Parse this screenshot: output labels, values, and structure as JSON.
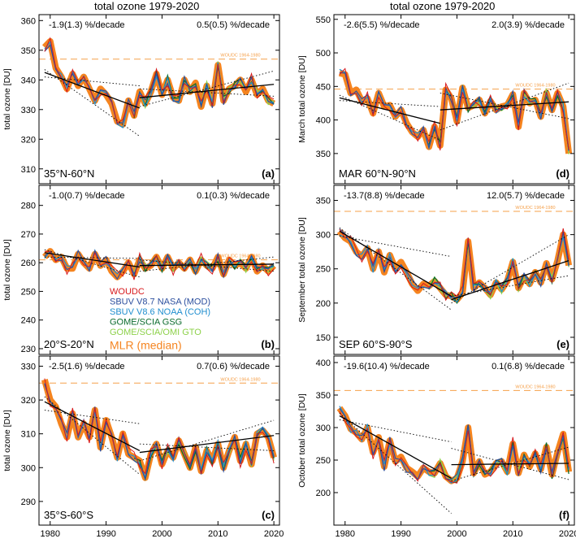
{
  "col_titles": [
    "total ozone 1979-2020",
    "total ozone 1979-2020"
  ],
  "woudc_ref_label": "WOUDC 1964-1980",
  "x_ticks": [
    1980,
    1990,
    2000,
    2010,
    2020
  ],
  "legend": [
    {
      "name": "WOUDC",
      "color": "#d7191c"
    },
    {
      "name": "SBUV V8.7 NASA (MOD)",
      "color": "#2c4f9e"
    },
    {
      "name": "SBUV V8.6 NOAA (COH)",
      "color": "#1f8ecf"
    },
    {
      "name": "GOME/SCIA GSG",
      "color": "#0b6b2e"
    },
    {
      "name": "GOME/SCIA/OMI GTO",
      "color": "#8dd14a"
    },
    {
      "name": "MLR (median)",
      "color": "#f5841f"
    }
  ],
  "colors": {
    "mlr": "#f5841f",
    "woudc": "#d7191c",
    "sbuv_mod": "#2c4f9e",
    "sbuv_coh": "#1f8ecf",
    "gsg": "#0b6b2e",
    "gto": "#8dd14a",
    "trend": "#000000",
    "ref": "#f5a04a"
  },
  "chart_data": [
    {
      "type": "line",
      "panel_letter": "(a)",
      "region": "35°N-60°N",
      "ylabel": "total ozone [DU]",
      "ylim": [
        305,
        362
      ],
      "yticks": [
        310,
        320,
        330,
        340,
        350,
        360
      ],
      "xlim": [
        1978,
        2021
      ],
      "trend_left": "-1.9(1.3) %/decade",
      "trend_right": "0.5(0.5) %/decade",
      "woudc_ref": 347,
      "fit1": {
        "x": [
          1979,
          1996
        ],
        "y": [
          342.5,
          330.5
        ]
      },
      "fit2": {
        "x": [
          1996,
          2020
        ],
        "y": [
          334,
          338.5
        ]
      },
      "ci1": [
        [
          1979,
          343.5,
          1996,
          321
        ],
        [
          1979,
          341,
          1996,
          338
        ]
      ],
      "ci2": [
        [
          1996,
          331,
          2020,
          343
        ],
        [
          1996,
          337,
          2020,
          334.5
        ]
      ],
      "x": [
        1979,
        1980,
        1981,
        1982,
        1983,
        1984,
        1985,
        1986,
        1987,
        1988,
        1989,
        1990,
        1991,
        1992,
        1993,
        1994,
        1995,
        1996,
        1997,
        1998,
        1999,
        2000,
        2001,
        2002,
        2003,
        2004,
        2005,
        2006,
        2007,
        2008,
        2009,
        2010,
        2011,
        2012,
        2013,
        2014,
        2015,
        2016,
        2017,
        2018,
        2019,
        2020
      ],
      "mlr": [
        351,
        353,
        344,
        341,
        337,
        342,
        338,
        341,
        337,
        333,
        337,
        335,
        332,
        326,
        325,
        333,
        328,
        336,
        332,
        336,
        342,
        335,
        340,
        334,
        333,
        340,
        336,
        339,
        331,
        338,
        332,
        345,
        333,
        337,
        338,
        340,
        336,
        340,
        335,
        337,
        333,
        332
      ]
    },
    {
      "type": "line",
      "panel_letter": "(b)",
      "region": "20°S-20°N",
      "ylabel": "total ozone [DU]",
      "ylim": [
        228,
        287
      ],
      "yticks": [
        230,
        240,
        250,
        260,
        270,
        280
      ],
      "xlim": [
        1978,
        2021
      ],
      "trend_left": "-1.0(0.7) %/decade",
      "trend_right": "0.1(0.3) %/decade",
      "woudc_ref": 261,
      "fit1": {
        "x": [
          1979,
          1996
        ],
        "y": [
          263.5,
          258.5
        ]
      },
      "fit2": {
        "x": [
          1996,
          2020
        ],
        "y": [
          259,
          259.5
        ]
      },
      "ci1": [
        [
          1979,
          264.5,
          1996,
          255
        ],
        [
          1979,
          262,
          1996,
          261.5
        ]
      ],
      "ci2": [
        [
          1996,
          257,
          2020,
          262
        ],
        [
          1996,
          261,
          2020,
          257
        ]
      ],
      "x": [
        1979,
        1980,
        1981,
        1982,
        1983,
        1984,
        1985,
        1986,
        1987,
        1988,
        1989,
        1990,
        1991,
        1992,
        1993,
        1994,
        1995,
        1996,
        1997,
        1998,
        1999,
        2000,
        2001,
        2002,
        2003,
        2004,
        2005,
        2006,
        2007,
        2008,
        2009,
        2010,
        2011,
        2012,
        2013,
        2014,
        2015,
        2016,
        2017,
        2018,
        2019,
        2020
      ],
      "mlr": [
        262,
        264,
        261,
        262,
        258,
        258,
        263,
        260,
        258,
        263,
        259,
        261,
        257,
        255,
        257,
        260,
        256,
        261,
        258,
        259,
        262,
        258,
        262,
        258,
        260,
        258,
        261,
        257,
        261,
        259,
        258,
        262,
        256,
        261,
        259,
        260,
        258,
        262,
        257,
        259,
        257,
        259
      ]
    },
    {
      "type": "line",
      "panel_letter": "(c)",
      "region": "35°S-60°S",
      "ylabel": "total ozone [DU]",
      "ylim": [
        283,
        333
      ],
      "yticks": [
        290,
        300,
        310,
        320,
        330
      ],
      "xlim": [
        1978,
        2021
      ],
      "trend_left": "-2.5(1.6) %/decade",
      "trend_right": "0.7(0.6) %/decade",
      "woudc_ref": 325,
      "fit1": {
        "x": [
          1979,
          1996
        ],
        "y": [
          319.5,
          305
        ]
      },
      "fit2": {
        "x": [
          1996,
          2020
        ],
        "y": [
          304.5,
          309.5
        ]
      },
      "ci1": [
        [
          1979,
          321,
          1996,
          298
        ],
        [
          1979,
          317,
          1996,
          313
        ]
      ],
      "ci2": [
        [
          1996,
          302,
          2020,
          314
        ],
        [
          1996,
          307,
          2020,
          305
        ]
      ],
      "x": [
        1979,
        1980,
        1981,
        1982,
        1983,
        1984,
        1985,
        1986,
        1987,
        1988,
        1989,
        1990,
        1991,
        1992,
        1993,
        1994,
        1995,
        1996,
        1997,
        1998,
        1999,
        2000,
        2001,
        2002,
        2003,
        2004,
        2005,
        2006,
        2007,
        2008,
        2009,
        2010,
        2011,
        2012,
        2013,
        2014,
        2015,
        2016,
        2017,
        2018,
        2019,
        2020
      ],
      "mlr": [
        326,
        320,
        318,
        313,
        309,
        316,
        309,
        313,
        309,
        317,
        306,
        314,
        309,
        303,
        310,
        304,
        303,
        302,
        297,
        304,
        307,
        301,
        305,
        303,
        308,
        304,
        300,
        306,
        299,
        305,
        302,
        307,
        300,
        305,
        309,
        302,
        307,
        301,
        310,
        311,
        309,
        303
      ]
    },
    {
      "type": "line",
      "panel_letter": "(d)",
      "region": "MAR 60°N-90°N",
      "ylabel": "March total ozone [DU]",
      "ylim": [
        305,
        557
      ],
      "yticks": [
        350,
        400,
        450,
        500,
        550
      ],
      "xlim": [
        1978,
        2021
      ],
      "trend_left": "-2.6(5.5) %/decade",
      "trend_right": "2.0(3.9) %/decade",
      "woudc_ref": 446,
      "fit1": {
        "x": [
          1979,
          1997
        ],
        "y": [
          433,
          395
        ]
      },
      "fit2": {
        "x": [
          1997,
          2020
        ],
        "y": [
          415,
          427
        ]
      },
      "ci1": [
        [
          1979,
          437,
          1997,
          370
        ],
        [
          1979,
          429,
          1997,
          420
        ]
      ],
      "ci2": [
        [
          1997,
          385,
          2020,
          455
        ],
        [
          1997,
          440,
          2020,
          402
        ]
      ],
      "x": [
        1979,
        1980,
        1981,
        1982,
        1983,
        1984,
        1985,
        1986,
        1987,
        1988,
        1989,
        1990,
        1991,
        1992,
        1993,
        1994,
        1995,
        1996,
        1997,
        1998,
        1999,
        2000,
        2001,
        2002,
        2003,
        2004,
        2005,
        2006,
        2007,
        2008,
        2009,
        2010,
        2011,
        2012,
        2013,
        2014,
        2015,
        2016,
        2017,
        2018,
        2019,
        2020
      ],
      "mlr": [
        470,
        468,
        440,
        445,
        428,
        432,
        410,
        440,
        420,
        422,
        405,
        415,
        395,
        382,
        375,
        385,
        360,
        390,
        362,
        445,
        432,
        398,
        448,
        418,
        422,
        430,
        410,
        428,
        415,
        420,
        422,
        438,
        390,
        440,
        425,
        430,
        405,
        440,
        415,
        440,
        420,
        350
      ]
    },
    {
      "type": "line",
      "panel_letter": "(e)",
      "region": "SEP 60°S-90°S",
      "ylabel": "September total ozone [DU]",
      "ylim": [
        125,
        372
      ],
      "yticks": [
        150,
        200,
        250,
        300,
        350
      ],
      "xlim": [
        1978,
        2021
      ],
      "trend_left": "-13.7(8.8) %/decade",
      "trend_right": "12.0(5.7) %/decade",
      "woudc_ref": 334,
      "fit1": {
        "x": [
          1979,
          1999
        ],
        "y": [
          305,
          210
        ]
      },
      "fit2": {
        "x": [
          1999,
          2020
        ],
        "y": [
          205,
          262
        ]
      },
      "ci1": [
        [
          1979,
          310,
          1999,
          190
        ],
        [
          1979,
          298,
          1999,
          268
        ]
      ],
      "ci2": [
        [
          1999,
          200,
          2020,
          300
        ],
        [
          1999,
          210,
          2020,
          240
        ]
      ],
      "x": [
        1979,
        1980,
        1981,
        1982,
        1983,
        1984,
        1985,
        1986,
        1987,
        1988,
        1989,
        1990,
        1991,
        1992,
        1993,
        1994,
        1995,
        1996,
        1997,
        1998,
        1999,
        2000,
        2001,
        2002,
        2003,
        2004,
        2005,
        2006,
        2007,
        2008,
        2009,
        2010,
        2011,
        2012,
        2013,
        2014,
        2015,
        2016,
        2017,
        2018,
        2019,
        2020
      ],
      "mlr": [
        305,
        295,
        290,
        275,
        268,
        280,
        250,
        275,
        245,
        270,
        250,
        260,
        245,
        228,
        218,
        228,
        225,
        232,
        222,
        212,
        210,
        205,
        215,
        290,
        222,
        230,
        222,
        212,
        230,
        220,
        232,
        260,
        222,
        238,
        228,
        245,
        230,
        258,
        235,
        262,
        300,
        255
      ]
    },
    {
      "type": "line",
      "panel_letter": "(f)",
      "region": "",
      "ylabel": "October total ozone [DU]",
      "ylim": [
        150,
        410
      ],
      "yticks": [
        200,
        250,
        300,
        350,
        400
      ],
      "xlim": [
        1978,
        2021
      ],
      "trend_left": "-19.6(10.4) %/decade",
      "trend_right": "0.1(6.8) %/decade",
      "woudc_ref": 357,
      "fit1": {
        "x": [
          1979,
          1999
        ],
        "y": [
          318,
          222
        ]
      },
      "fit2": {
        "x": [
          1999,
          2020
        ],
        "y": [
          243,
          245
        ]
      },
      "ci1": [
        [
          1979,
          322,
          1999,
          168
        ],
        [
          1979,
          312,
          1999,
          278
        ]
      ],
      "ci2": [
        [
          1999,
          218,
          2020,
          270
        ],
        [
          1999,
          268,
          2020,
          220
        ]
      ],
      "x": [
        1979,
        1980,
        1981,
        1982,
        1983,
        1984,
        1985,
        1986,
        1987,
        1988,
        1989,
        1990,
        1991,
        1992,
        1993,
        1994,
        1995,
        1996,
        1997,
        1998,
        1999,
        2000,
        2001,
        2002,
        2003,
        2004,
        2005,
        2006,
        2007,
        2008,
        2009,
        2010,
        2011,
        2012,
        2013,
        2014,
        2015,
        2016,
        2017,
        2018,
        2019,
        2020
      ],
      "mlr": [
        330,
        318,
        298,
        292,
        282,
        300,
        262,
        285,
        240,
        280,
        248,
        255,
        238,
        232,
        225,
        238,
        232,
        230,
        245,
        225,
        218,
        222,
        248,
        300,
        230,
        248,
        228,
        232,
        245,
        248,
        232,
        275,
        230,
        258,
        240,
        260,
        236,
        270,
        228,
        262,
        290,
        232
      ]
    }
  ]
}
